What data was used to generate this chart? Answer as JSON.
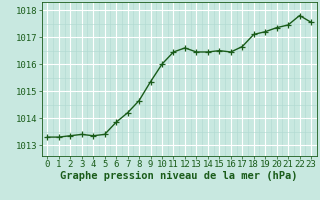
{
  "x": [
    0,
    1,
    2,
    3,
    4,
    5,
    6,
    7,
    8,
    9,
    10,
    11,
    12,
    13,
    14,
    15,
    16,
    17,
    18,
    19,
    20,
    21,
    22,
    23
  ],
  "y": [
    1013.3,
    1013.3,
    1013.35,
    1013.4,
    1013.35,
    1013.4,
    1013.85,
    1014.2,
    1014.65,
    1015.35,
    1016.0,
    1016.45,
    1016.6,
    1016.45,
    1016.45,
    1016.5,
    1016.45,
    1016.65,
    1017.1,
    1017.2,
    1017.35,
    1017.45,
    1017.8,
    1017.55
  ],
  "line_color": "#1a5c1a",
  "marker_color": "#1a5c1a",
  "bg_color": "#c8e8e0",
  "grid_major_color": "#ffffff",
  "grid_minor_color": "#b0d8d0",
  "xlabel": "Graphe pression niveau de la mer (hPa)",
  "xlabel_color": "#1a5c1a",
  "tick_color": "#1a5c1a",
  "ylabel_ticks": [
    1013,
    1014,
    1015,
    1016,
    1017,
    1018
  ],
  "ylim": [
    1012.6,
    1018.3
  ],
  "xlim": [
    -0.5,
    23.5
  ],
  "xticks": [
    0,
    1,
    2,
    3,
    4,
    5,
    6,
    7,
    8,
    9,
    10,
    11,
    12,
    13,
    14,
    15,
    16,
    17,
    18,
    19,
    20,
    21,
    22,
    23
  ],
  "marker_size": 4,
  "line_width": 1.0,
  "xlabel_fontsize": 7.5,
  "tick_fontsize": 6.5
}
